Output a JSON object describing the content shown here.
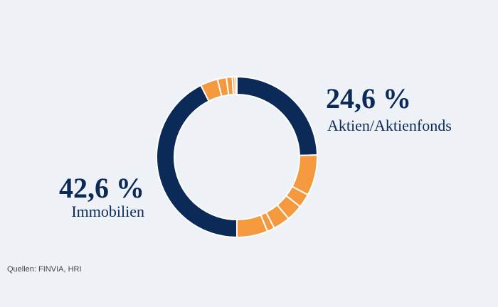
{
  "chart_data": {
    "type": "pie",
    "categories": [
      "Aktien/Aktienfonds",
      null,
      null,
      null,
      null,
      null,
      null,
      "Immobilien",
      null,
      null,
      null,
      null,
      null
    ],
    "values": [
      24.6,
      8.2,
      2.8,
      3.3,
      3.4,
      1.5,
      6.2,
      42.6,
      3.5,
      1.8,
      1.2,
      0.5,
      0.4
    ],
    "value_labels": [
      "24,6 %",
      null,
      null,
      null,
      null,
      null,
      null,
      "42,6 %",
      null,
      null,
      null,
      null,
      null
    ],
    "colors": [
      "#0c2a58",
      "#f5993f",
      "#f5993f",
      "#f5993f",
      "#f5993f",
      "#f5993f",
      "#f5993f",
      "#0c2a58",
      "#f5993f",
      "#f5993f",
      "#f5993f",
      "#f5993f",
      "#f5993f"
    ],
    "source": "Quellen: FINVIA, HRI"
  }
}
